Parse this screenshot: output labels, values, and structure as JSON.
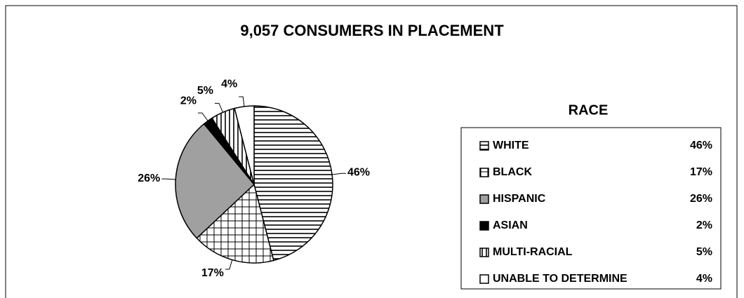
{
  "chart_data": {
    "type": "pie",
    "title": "9,057 CONSUMERS IN PLACEMENT",
    "legend_title": "RACE",
    "categories": [
      "WHITE",
      "BLACK",
      "HISPANIC",
      "ASIAN",
      "MULTI-RACIAL",
      "UNABLE TO DETERMINE"
    ],
    "values": [
      46,
      17,
      26,
      2,
      5,
      4
    ],
    "value_labels": [
      "46%",
      "17%",
      "26%",
      "2%",
      "5%",
      "4%"
    ],
    "colors": [
      "#ffffff",
      "#ffffff",
      "#a0a0a0",
      "#000000",
      "#ffffff",
      "#ffffff"
    ],
    "patterns": [
      "horizontal",
      "grid",
      "solid",
      "solid",
      "vertical",
      "solid"
    ]
  }
}
